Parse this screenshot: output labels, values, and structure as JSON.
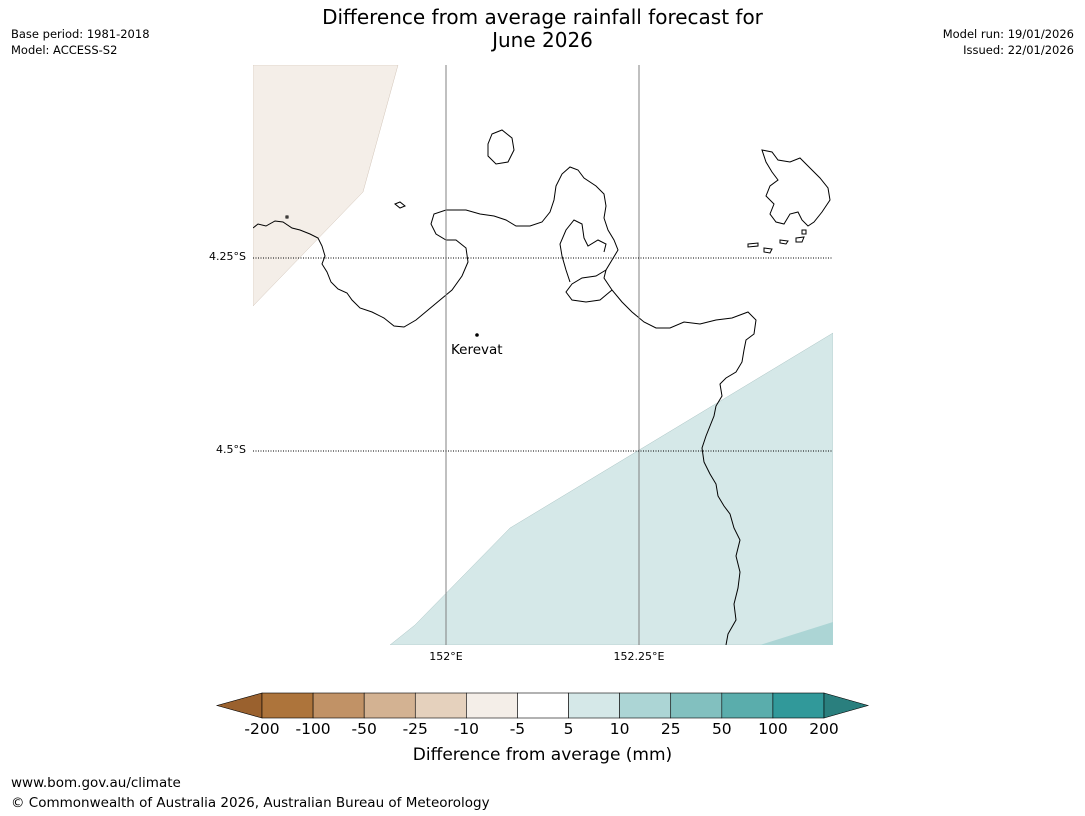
{
  "header": {
    "title_line1": "Difference from average rainfall forecast for",
    "title_line2": "June 2026",
    "base_period": "Base period: 1981-2018",
    "model": "Model: ACCESS-S2",
    "model_run": "Model run: 19/01/2026",
    "issued": "Issued: 22/01/2026"
  },
  "map": {
    "place_label": "Kerevat",
    "lat_labels": [
      "4.25°S",
      "4.5°S"
    ],
    "lon_labels": [
      "152°E",
      "152.25°E"
    ],
    "coastline_color": "#000000",
    "gridline_color": "#808080"
  },
  "colorbar": {
    "title": "Difference from average (mm)",
    "ticks": [
      "-200",
      "-100",
      "-50",
      "-25",
      "-10",
      "-5",
      "5",
      "10",
      "25",
      "50",
      "100",
      "200"
    ],
    "colors": [
      "#9a612e",
      "#ad743b",
      "#c19266",
      "#d3b292",
      "#e5d1bd",
      "#f4eee8",
      "#ffffff",
      "#d5e8e8",
      "#acd5d5",
      "#82c0bf",
      "#5aadac",
      "#31999a",
      "#2a7f7e"
    ]
  },
  "footer": {
    "website": "www.bom.gov.au/climate",
    "copyright": "© Commonwealth of Australia 2026, Australian Bureau of Meteorology"
  }
}
